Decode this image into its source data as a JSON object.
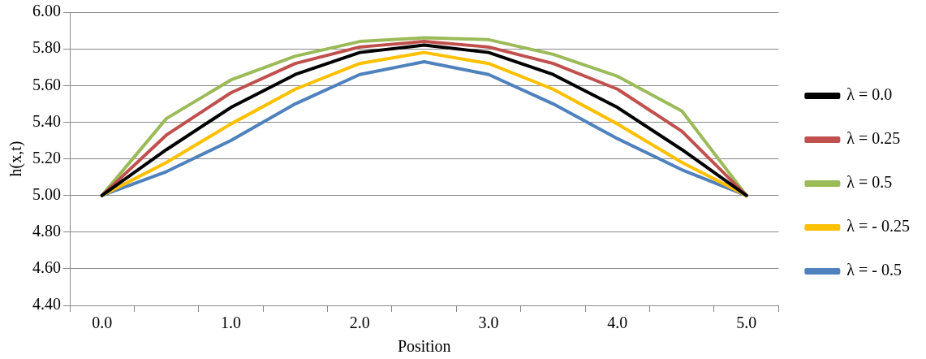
{
  "chart_data": {
    "type": "line",
    "xlabel": "Position",
    "ylabel": "h(x,t)",
    "categories": [
      "0.0",
      null,
      "1.0",
      null,
      "2.0",
      null,
      "3.0",
      null,
      "4.0",
      null,
      "5.0"
    ],
    "series": [
      {
        "name": "λ = 0.0",
        "color": "#000000",
        "values": [
          5.0,
          5.25,
          5.48,
          5.66,
          5.78,
          5.82,
          5.78,
          5.66,
          5.48,
          5.25,
          5.0
        ]
      },
      {
        "name": "λ = 0.25",
        "color": "#c0504d",
        "values": [
          5.0,
          5.33,
          5.56,
          5.72,
          5.81,
          5.84,
          5.81,
          5.72,
          5.58,
          5.35,
          5.0
        ]
      },
      {
        "name": "λ = 0.5",
        "color": "#9bbb59",
        "values": [
          5.0,
          5.42,
          5.63,
          5.76,
          5.84,
          5.86,
          5.85,
          5.77,
          5.65,
          5.46,
          5.0
        ]
      },
      {
        "name": "λ = - 0.25",
        "color": "#ffc000",
        "values": [
          5.0,
          5.18,
          5.39,
          5.58,
          5.72,
          5.78,
          5.72,
          5.58,
          5.39,
          5.18,
          5.0
        ]
      },
      {
        "name": "λ = - 0.5",
        "color": "#4f81bd",
        "values": [
          5.0,
          5.13,
          5.3,
          5.5,
          5.66,
          5.73,
          5.66,
          5.5,
          5.31,
          5.14,
          5.0
        ]
      }
    ],
    "ylim": [
      4.4,
      6.0
    ],
    "yticks": [
      {
        "value": 4.4,
        "label": "4.40"
      },
      {
        "value": 4.6,
        "label": "4.60"
      },
      {
        "value": 4.8,
        "label": "4.80"
      },
      {
        "value": 5.0,
        "label": "5.00"
      },
      {
        "value": 5.2,
        "label": "5.20"
      },
      {
        "value": 5.4,
        "label": "5.40"
      },
      {
        "value": 5.6,
        "label": "5.60"
      },
      {
        "value": 5.8,
        "label": "5.80"
      },
      {
        "value": 6.0,
        "label": "6.00"
      }
    ],
    "grid": "y",
    "legend": "right",
    "marker": "none",
    "line_style": "solid"
  }
}
